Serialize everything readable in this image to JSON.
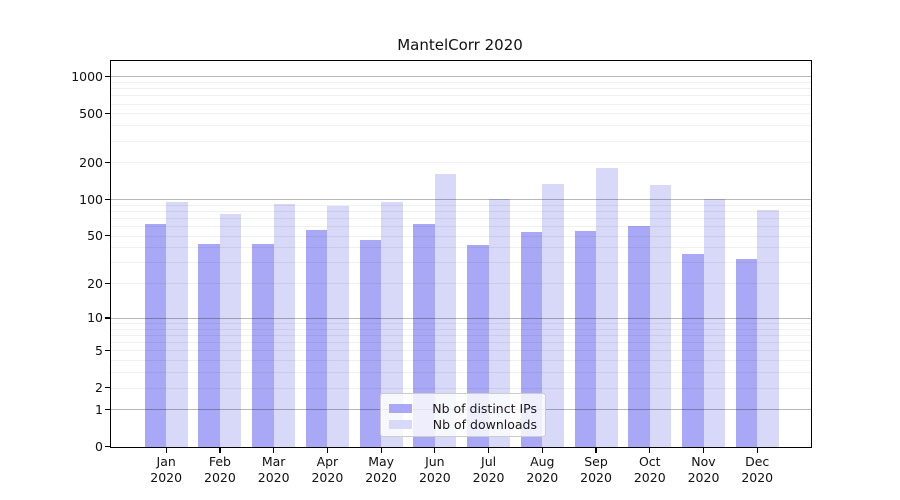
{
  "title": "MantelCorr 2020",
  "colors": {
    "bar_distinct_ips": "#a8a8f6",
    "bar_downloads": "#d8d8f8",
    "major_gridline": "rgba(0,0,0,0.28)",
    "minor_gridline": "rgba(0,0,0,0.06)",
    "axis": "#000000"
  },
  "legend": {
    "items": [
      {
        "label": "Nb of distinct IPs",
        "color": "#a8a8f6"
      },
      {
        "label": "Nb of downloads",
        "color": "#d8d8f8"
      }
    ]
  },
  "chart_data": {
    "type": "bar",
    "title": "MantelCorr 2020",
    "categories": [
      "Jan 2020",
      "Feb 2020",
      "Mar 2020",
      "Apr 2020",
      "May 2020",
      "Jun 2020",
      "Jul 2020",
      "Aug 2020",
      "Sep 2020",
      "Oct 2020",
      "Nov 2020",
      "Dec 2020"
    ],
    "month_labels": [
      "Jan",
      "Feb",
      "Mar",
      "Apr",
      "May",
      "Jun",
      "Jul",
      "Aug",
      "Sep",
      "Oct",
      "Nov",
      "Dec"
    ],
    "year_label": "2020",
    "series": [
      {
        "name": "Nb of distinct IPs",
        "color": "#a8a8f6",
        "values": [
          62,
          43,
          43,
          56,
          46,
          63,
          42,
          54,
          55,
          60,
          35,
          32
        ]
      },
      {
        "name": "Nb of downloads",
        "color": "#d8d8f8",
        "values": [
          95,
          75,
          91,
          88,
          95,
          160,
          101,
          133,
          180,
          130,
          100,
          82
        ]
      }
    ],
    "xlabel": "",
    "ylabel": "",
    "yscale": "log1p",
    "ylim": [
      0,
      1070
    ],
    "grid": true,
    "legend_position": "lower-center-inside",
    "y_ticks": [
      {
        "value": 1000,
        "label": "1000"
      },
      {
        "value": 500,
        "label": "500"
      },
      {
        "value": 200,
        "label": "200"
      },
      {
        "value": 100,
        "label": "100"
      },
      {
        "value": 50,
        "label": "50"
      },
      {
        "value": 20,
        "label": "20"
      },
      {
        "value": 10,
        "label": "10"
      },
      {
        "value": 5,
        "label": "5"
      },
      {
        "value": 2,
        "label": "2"
      },
      {
        "value": 1,
        "label": "1"
      },
      {
        "value": 0,
        "label": "0"
      }
    ],
    "y_major_gridlines": [
      1,
      10,
      100,
      1000
    ],
    "y_minor_gridlines": [
      2,
      3,
      4,
      5,
      6,
      7,
      8,
      9,
      20,
      30,
      40,
      50,
      60,
      70,
      80,
      90,
      200,
      300,
      400,
      500,
      600,
      700,
      800,
      900
    ]
  }
}
